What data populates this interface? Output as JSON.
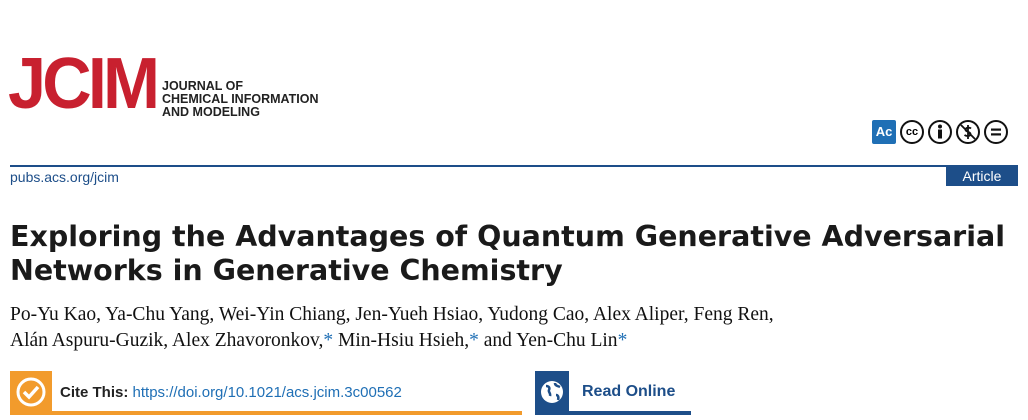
{
  "header": {
    "logo": "JCIM",
    "journal_lines": [
      "JOURNAL OF",
      "CHEMICAL INFORMATION",
      "AND MODELING"
    ],
    "license_icons": [
      "Ac",
      "cc"
    ],
    "url": "pubs.acs.org/jcim",
    "article_type": "Article"
  },
  "title_lines": [
    "Exploring the Advantages of Quantum Generative Adversarial",
    "Networks in Generative Chemistry"
  ],
  "author_lines": [
    [
      {
        "text": "Po-Yu Kao,"
      },
      {
        "text": "Ya-Chu Yang,"
      },
      {
        "text": "Wei-Yin Chiang,"
      },
      {
        "text": "Jen-Yueh Hsiao,"
      },
      {
        "text": "Yudong Cao,"
      },
      {
        "text": "Alex Aliper,"
      },
      {
        "text": "Feng Ren,"
      }
    ],
    [
      {
        "text": "Alán Aspuru-Guzik,"
      },
      {
        "text": "Alex Zhavoronkov,",
        "mark": "*"
      },
      {
        "text": "Min-Hsiu Hsieh,",
        "mark": "*"
      },
      {
        "text": "and Yen-Chu Lin",
        "mark": "*"
      }
    ]
  ],
  "cite": {
    "label": "Cite This:",
    "doi": "https://doi.org/10.1021/acs.jcim.3c00562"
  },
  "read_online": "Read Online"
}
